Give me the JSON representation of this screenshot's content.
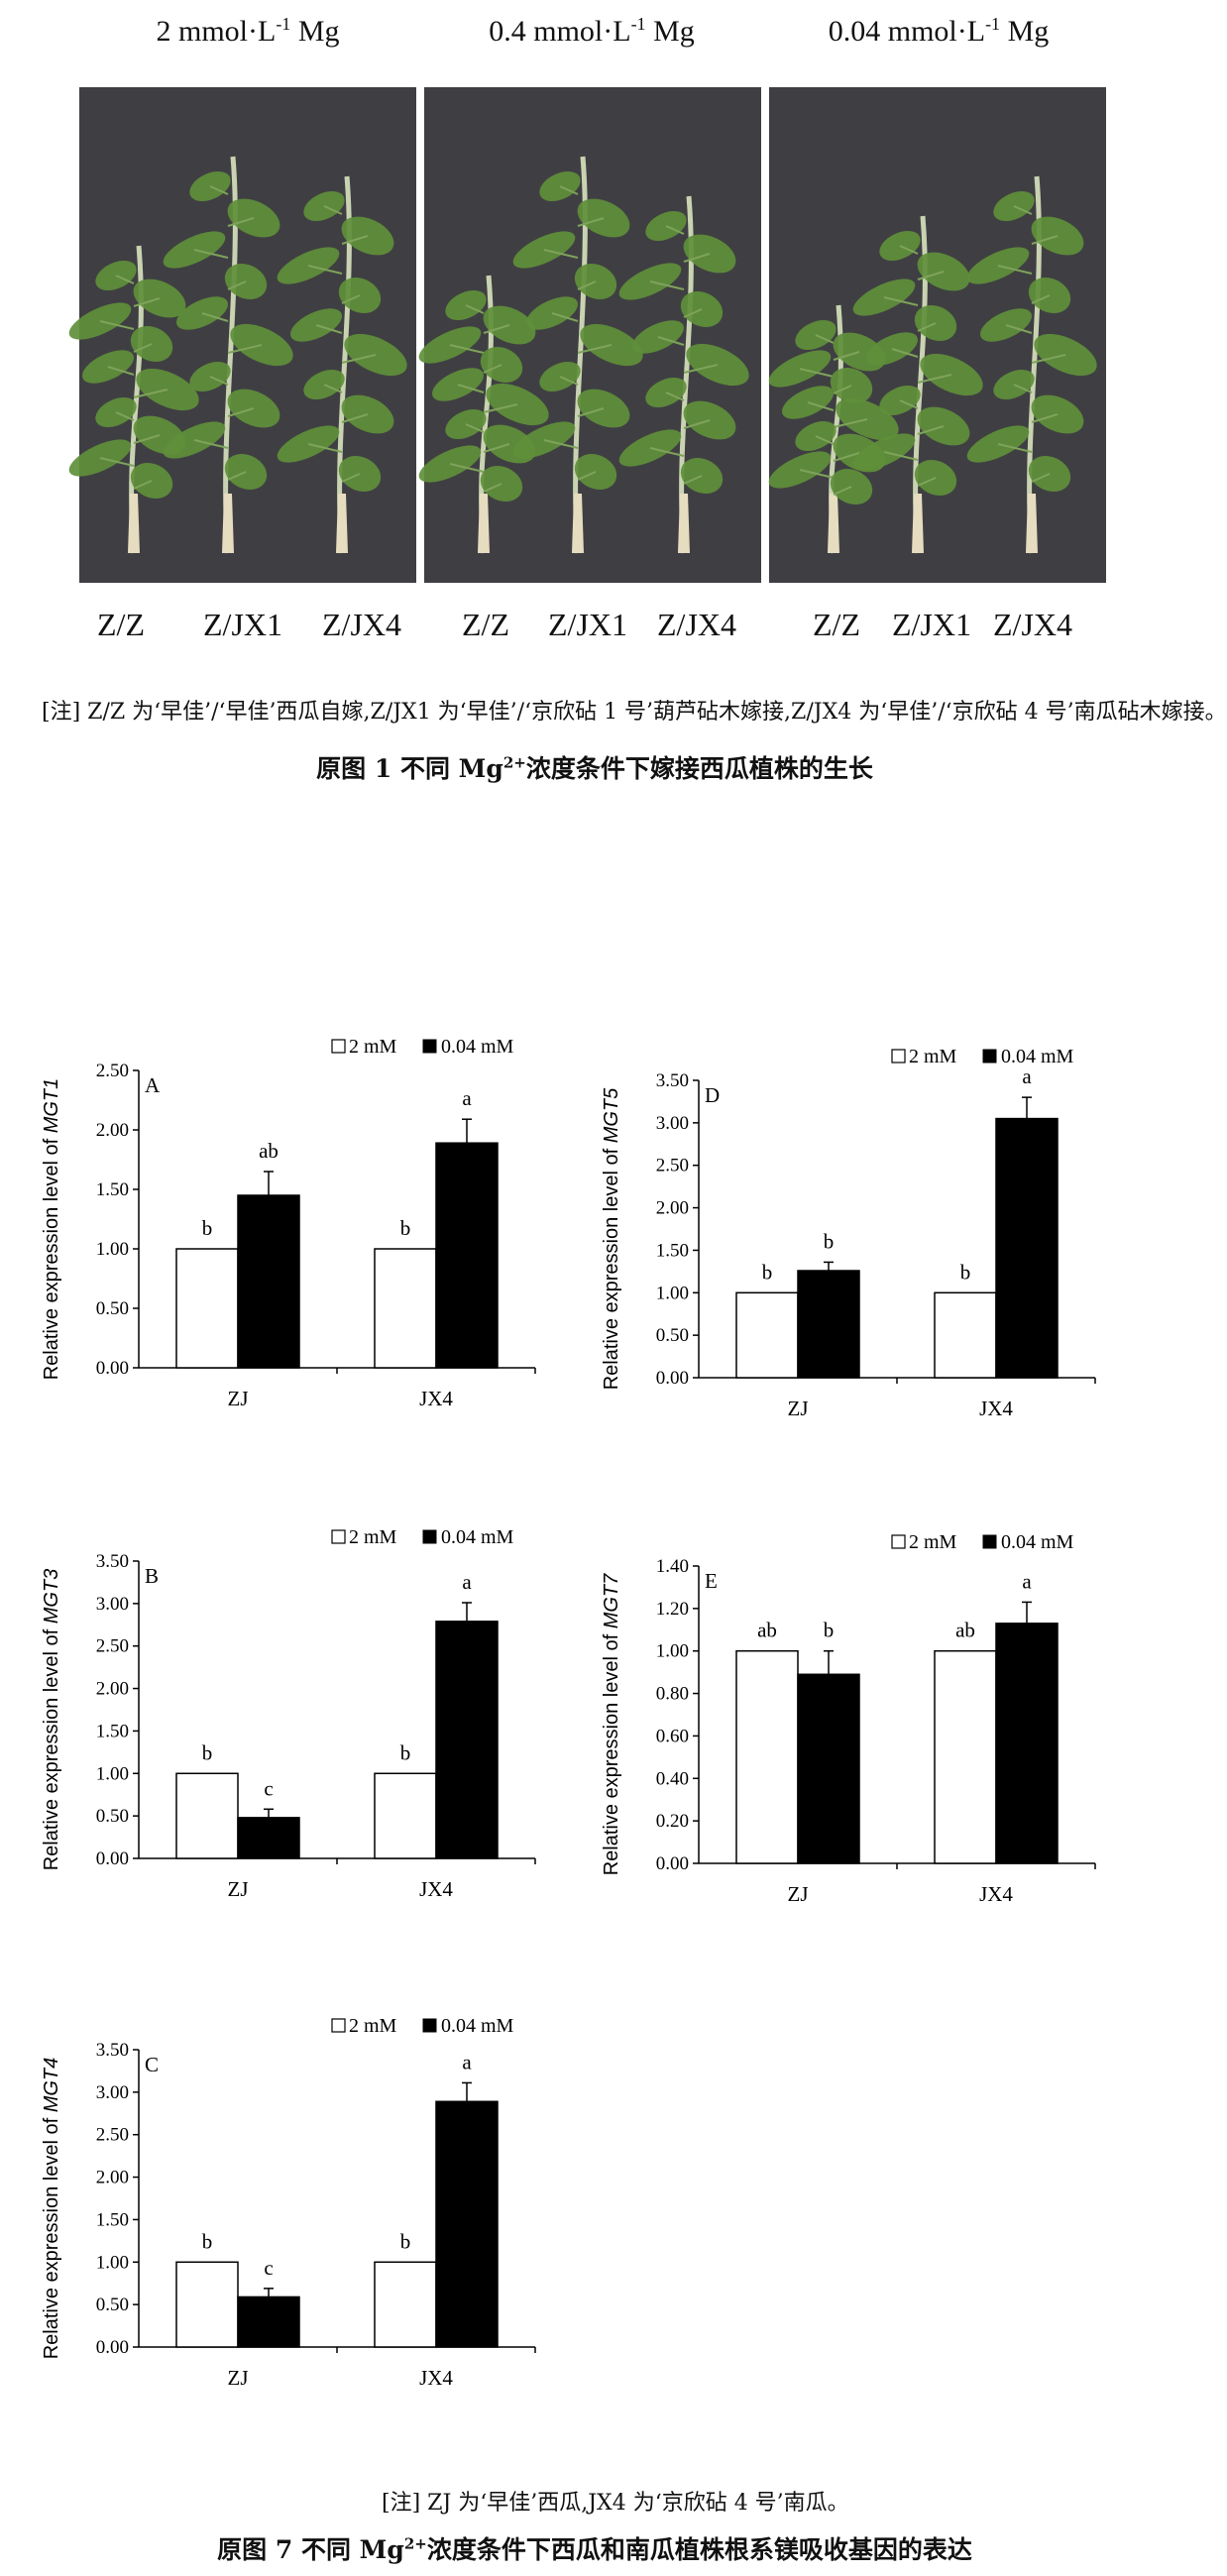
{
  "figure1": {
    "column_labels": [
      {
        "pre": "2 mmol·L",
        "sup": "-1",
        "post": " Mg"
      },
      {
        "pre": "0.4 mmol·L",
        "sup": "-1",
        "post": " Mg"
      },
      {
        "pre": "0.04 mmol·L",
        "sup": "-1",
        "post": " Mg"
      }
    ],
    "plant_labels": [
      "Z/Z",
      "Z/JX1",
      "Z/JX4",
      "Z/Z",
      "Z/JX1",
      "Z/JX4",
      "Z/Z",
      "Z/JX1",
      "Z/JX4"
    ],
    "note": "[注]  Z/Z 为‘早佳’/‘早佳’西瓜自嫁,Z/JX1 为‘早佳’/‘京欣砧 1 号’葫芦砧木嫁接,Z/JX4 为‘早佳’/‘京欣砧 4 号’南瓜砧木嫁接。",
    "caption_pre": "原图 1   不同 Mg",
    "caption_sup": "2+",
    "caption_post": "浓度条件下嫁接西瓜植株的生长",
    "colors": {
      "background": "#3f3f43",
      "leaf": "#5f8f3a",
      "stem": "#c9d3b2"
    }
  },
  "figure7": {
    "legend": {
      "series1": "2 mM",
      "series2": "0.04 mM"
    },
    "note": "[注]   ZJ 为‘早佳’西瓜,JX4 为‘京欣砧 4 号’南瓜。",
    "caption_pre": "原图 7   不同 Mg",
    "caption_sup": "2+",
    "caption_post": "浓度条件下西瓜和南瓜植株根系镁吸收基因的表达"
  },
  "chart_data": [
    {
      "type": "bar",
      "panel": "A",
      "ylabel_prefix": "Relative expression level of ",
      "gene": "MGT1",
      "categories": [
        "ZJ",
        "JX4"
      ],
      "series": [
        {
          "name": "2 mM",
          "values": [
            1.0,
            1.0
          ],
          "errors": [
            0,
            0
          ],
          "letters": [
            "b",
            "b"
          ],
          "color": "#ffffff"
        },
        {
          "name": "0.04 mM",
          "values": [
            1.45,
            1.89
          ],
          "errors": [
            0.2,
            0.2
          ],
          "letters": [
            "ab",
            "a"
          ],
          "color": "#000000"
        }
      ],
      "yticks": [
        "0.00",
        "0.50",
        "1.00",
        "1.50",
        "2.00",
        "2.50"
      ],
      "ylim": [
        0,
        2.5
      ]
    },
    {
      "type": "bar",
      "panel": "D",
      "ylabel_prefix": "Relative expression level of ",
      "gene": "MGT5",
      "categories": [
        "ZJ",
        "JX4"
      ],
      "series": [
        {
          "name": "2 mM",
          "values": [
            1.0,
            1.0
          ],
          "errors": [
            0,
            0
          ],
          "letters": [
            "b",
            "b"
          ],
          "color": "#ffffff"
        },
        {
          "name": "0.04 mM",
          "values": [
            1.26,
            3.05
          ],
          "errors": [
            0.1,
            0.25
          ],
          "letters": [
            "b",
            "a"
          ],
          "color": "#000000"
        }
      ],
      "yticks": [
        "0.00",
        "0.50",
        "1.00",
        "1.50",
        "2.00",
        "2.50",
        "3.00",
        "3.50"
      ],
      "ylim": [
        0,
        3.5
      ]
    },
    {
      "type": "bar",
      "panel": "B",
      "ylabel_prefix": "Relative expression level of ",
      "gene": "MGT3",
      "categories": [
        "ZJ",
        "JX4"
      ],
      "series": [
        {
          "name": "2 mM",
          "values": [
            1.0,
            1.0
          ],
          "errors": [
            0,
            0
          ],
          "letters": [
            "b",
            "b"
          ],
          "color": "#ffffff"
        },
        {
          "name": "0.04 mM",
          "values": [
            0.48,
            2.79
          ],
          "errors": [
            0.1,
            0.22
          ],
          "letters": [
            "c",
            "a"
          ],
          "color": "#000000"
        }
      ],
      "yticks": [
        "0.00",
        "0.50",
        "1.00",
        "1.50",
        "2.00",
        "2.50",
        "3.00",
        "3.50"
      ],
      "ylim": [
        0,
        3.5
      ]
    },
    {
      "type": "bar",
      "panel": "E",
      "ylabel_prefix": "Relative expression level of ",
      "gene": "MGT7",
      "categories": [
        "ZJ",
        "JX4"
      ],
      "series": [
        {
          "name": "2 mM",
          "values": [
            1.0,
            1.0
          ],
          "errors": [
            0,
            0
          ],
          "letters": [
            "ab",
            "ab"
          ],
          "color": "#ffffff"
        },
        {
          "name": "0.04 mM",
          "values": [
            0.89,
            1.13
          ],
          "errors": [
            0.11,
            0.1
          ],
          "letters": [
            "b",
            "a"
          ],
          "color": "#000000"
        }
      ],
      "yticks": [
        "0.00",
        "0.20",
        "0.40",
        "0.60",
        "0.80",
        "1.00",
        "1.20",
        "1.40"
      ],
      "ylim": [
        0,
        1.4
      ]
    },
    {
      "type": "bar",
      "panel": "C",
      "ylabel_prefix": "Relative expression level of ",
      "gene": "MGT4",
      "categories": [
        "ZJ",
        "JX4"
      ],
      "series": [
        {
          "name": "2 mM",
          "values": [
            1.0,
            1.0
          ],
          "errors": [
            0,
            0
          ],
          "letters": [
            "b",
            "b"
          ],
          "color": "#ffffff"
        },
        {
          "name": "0.04 mM",
          "values": [
            0.59,
            2.89
          ],
          "errors": [
            0.1,
            0.22
          ],
          "letters": [
            "c",
            "a"
          ],
          "color": "#000000"
        }
      ],
      "yticks": [
        "0.00",
        "0.50",
        "1.00",
        "1.50",
        "2.00",
        "2.50",
        "3.00",
        "3.50"
      ],
      "ylim": [
        0,
        3.5
      ]
    }
  ]
}
